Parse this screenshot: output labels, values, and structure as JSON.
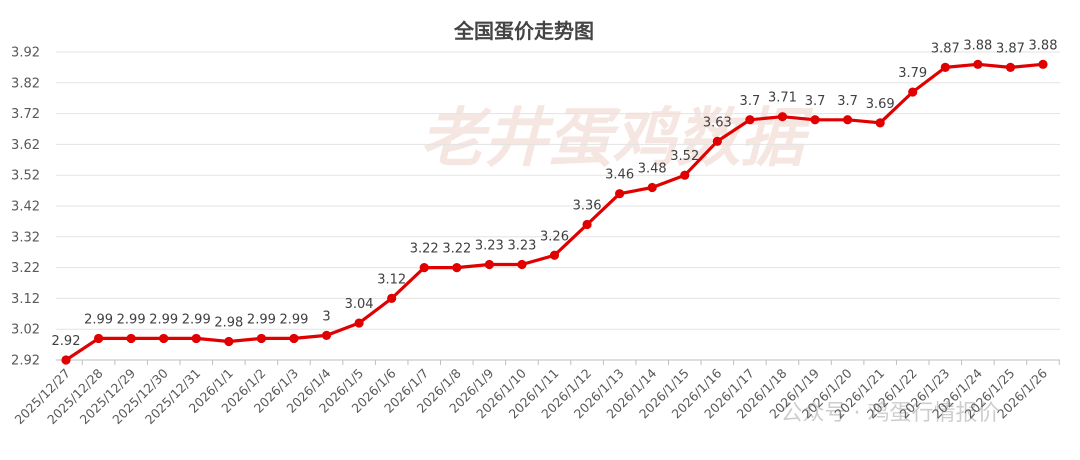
{
  "chart_data": {
    "type": "line",
    "title": "全国蛋价走势图",
    "watermark": "老井蛋鸡数据",
    "watermark_bottom": "公众号 · 鸡蛋行情报价",
    "line_color": "#e00000",
    "ylim": [
      2.92,
      3.92
    ],
    "yticks": [
      "3.92",
      "3.82",
      "3.72",
      "3.62",
      "3.52",
      "3.42",
      "3.32",
      "3.22",
      "3.12",
      "3.02",
      "2.92"
    ],
    "grid": "horizontal",
    "categories": [
      "2025/12/27",
      "2025/12/28",
      "2025/12/29",
      "2025/12/30",
      "2025/12/31",
      "2026/1/1",
      "2026/1/2",
      "2026/1/3",
      "2026/1/4",
      "2026/1/5",
      "2026/1/6",
      "2026/1/7",
      "2026/1/8",
      "2026/1/9",
      "2026/1/10",
      "2026/1/11",
      "2026/1/12",
      "2026/1/13",
      "2026/1/14",
      "2026/1/15",
      "2026/1/16",
      "2026/1/17",
      "2026/1/18",
      "2026/1/19",
      "2026/1/20",
      "2026/1/21",
      "2026/1/22",
      "2026/1/23",
      "2026/1/24",
      "2026/1/25",
      "2026/1/26"
    ],
    "values": [
      2.92,
      2.99,
      2.99,
      2.99,
      2.99,
      2.98,
      2.99,
      2.99,
      3.0,
      3.04,
      3.12,
      3.22,
      3.22,
      3.23,
      3.23,
      3.26,
      3.36,
      3.46,
      3.48,
      3.52,
      3.63,
      3.7,
      3.71,
      3.7,
      3.7,
      3.69,
      3.79,
      3.87,
      3.88,
      3.87,
      3.88
    ],
    "data_labels": [
      "2.92",
      "2.99",
      "2.99",
      "2.99",
      "2.99",
      "2.98",
      "2.99",
      "2.99",
      "3",
      "3.04",
      "3.12",
      "3.22",
      "3.22",
      "3.23",
      "3.23",
      "3.26",
      "3.36",
      "3.46",
      "3.48",
      "3.52",
      "3.63",
      "3.7",
      "3.71",
      "3.7",
      "3.7",
      "3.69",
      "3.79",
      "3.87",
      "3.88",
      "3.87",
      "3.88"
    ]
  }
}
